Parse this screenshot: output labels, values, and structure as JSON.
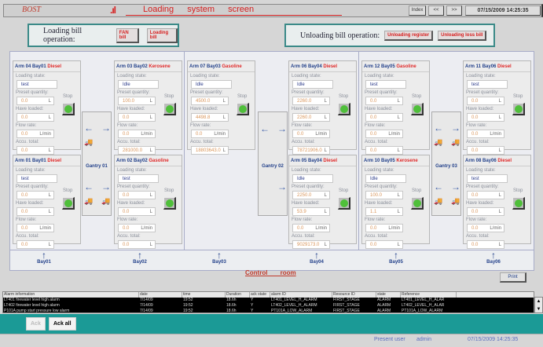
{
  "header": {
    "logo": "BOST",
    "title": "Loading system screen",
    "index_label": "Index",
    "prev_label": "<<",
    "next_label": ">>",
    "datetime": "07/15/2009 14:25:35"
  },
  "loading_ops": {
    "label": "Loading bill operation:",
    "buttons": [
      "FAN bill",
      "Loading bill"
    ]
  },
  "unloading_ops": {
    "label": "Unloading bill operation:",
    "buttons": [
      "Unloading register",
      "Unloading loss bill"
    ]
  },
  "field_labels": {
    "state": "Loading state:",
    "preset": "Preset quantity:",
    "loaded": "Have loaded:",
    "flow": "Flow rate:",
    "total": "Accu. total:",
    "stop": "Stop",
    "unit_l": "L",
    "unit_flow": "L/min"
  },
  "arms": [
    {
      "arm": "Arm 04",
      "bay": "Bay01",
      "product": "Diesel",
      "state": "test",
      "preset": "0.0",
      "loaded": "0.0",
      "flow": "0.0",
      "total": "0.0"
    },
    {
      "arm": "Arm 03",
      "bay": "Bay02",
      "product": "Kerosene",
      "state": "Idle",
      "preset": "100.0",
      "loaded": "0.0",
      "flow": "0.0",
      "total": "281000.0"
    },
    {
      "arm": "Arm 01",
      "bay": "Bay01",
      "product": "Diesel",
      "state": "test",
      "preset": "0.0",
      "loaded": "0.0",
      "flow": "0.0",
      "total": "0.0"
    },
    {
      "arm": "Arm 02",
      "bay": "Bay02",
      "product": "Gasoline",
      "state": "test",
      "preset": "0.0",
      "loaded": "0.0",
      "flow": "0.0",
      "total": "0.0"
    },
    {
      "arm": "Arm 07",
      "bay": "Bay03",
      "product": "Gasoline",
      "state": "Idle",
      "preset": "4500.0",
      "loaded": "4498.8",
      "flow": "0.0",
      "total": "18803643.0"
    },
    {
      "arm": "Arm 06",
      "bay": "Bay04",
      "product": "Diesel",
      "state": "Idle",
      "preset": "2260.0",
      "loaded": "2260.0",
      "flow": "0.0",
      "total": "78721906.0"
    },
    {
      "arm": "Arm 05",
      "bay": "Bay04",
      "product": "Diesel",
      "state": "Idle",
      "preset": "2250.0",
      "loaded": "53.9",
      "flow": "0.0",
      "total": "9029173.0"
    },
    {
      "arm": "Arm 12",
      "bay": "Bay05",
      "product": "Gasoline",
      "state": "test",
      "preset": "0.0",
      "loaded": "0.0",
      "flow": "0.0",
      "total": "0.0"
    },
    {
      "arm": "Arm 11",
      "bay": "Bay06",
      "product": "Diesel",
      "state": "test",
      "preset": "0.0",
      "loaded": "0.0",
      "flow": "0.0",
      "total": "0.0"
    },
    {
      "arm": "Arm 10",
      "bay": "Bay05",
      "product": "Kerosene",
      "state": "Idle",
      "preset": "100.0",
      "loaded": "1.1",
      "flow": "0.0",
      "total": "0.0"
    },
    {
      "arm": "Arm 08",
      "bay": "Bay06",
      "product": "Diesel",
      "state": "test",
      "preset": "0.0",
      "loaded": "0.0",
      "flow": "0.0",
      "total": "0.0"
    }
  ],
  "gantries": [
    "Gantry 01",
    "Gantry 02",
    "Gantry 03"
  ],
  "bays": [
    "Bay01",
    "Bay02",
    "Bay03",
    "Bay04",
    "Bay05",
    "Bay06"
  ],
  "control_room": "Control room",
  "print_label": "Print",
  "alarm_table": {
    "columns": [
      "Alarm information",
      "date",
      "time",
      "Duration",
      "ack state",
      "alarm ID",
      "Resource ID",
      "state",
      "Reference"
    ],
    "rows": [
      [
        "LT401 firewater level high alarm",
        "7/14/09",
        "19:52",
        "18.6h",
        "Y",
        "LT401_LEVEL_H_ALARM",
        "FIRST_STAGE",
        "ALARM",
        "LT401_LEVEL_H_ALAR"
      ],
      [
        "LT402 firewater level high alarm",
        "7/14/09",
        "19:52",
        "18.6h",
        "Y",
        "LT402_LEVEL_H_ALARM",
        "FIRST_STAGE",
        "ALARM",
        "LT402_LEVEL_H_ALAR"
      ],
      [
        "P101A pump start pressure low alarm",
        "7/14/09",
        "19:52",
        "18.6h",
        "Y",
        "PT101A_LOW_ALARM",
        "FIRST_STAGE",
        "ALARM",
        "PT101A_LOW_ALARM"
      ]
    ]
  },
  "ack_label": "Ack",
  "ack_all_label": "Ack all",
  "status": {
    "user_label": "Present user",
    "user": "admin",
    "datetime": "07/15/2009 14:25:35"
  },
  "colors": {
    "accent": "#1b9a96",
    "title_red": "#d62020",
    "stop_green": "#4fbf3a",
    "arm_blue": "#22408a"
  }
}
